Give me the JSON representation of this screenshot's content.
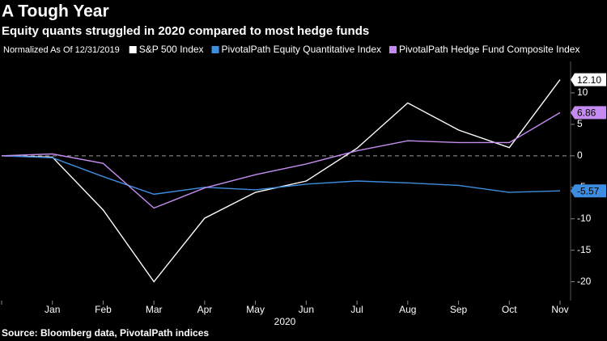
{
  "chart_data": {
    "type": "line",
    "title": "A Tough Year",
    "subtitle": "Equity quants struggled in 2020 compared to most hedge funds",
    "legend_title": "Normalized As Of 12/31/2019",
    "x_label": "2020",
    "source": "Source: Bloomberg data, PivotalPath indices",
    "categories": [
      null,
      "Jan",
      "Feb",
      "Mar",
      "Apr",
      "May",
      "Jun",
      "Jul",
      "Aug",
      "Sep",
      "Oct",
      "Nov"
    ],
    "series": [
      {
        "name": "S&P 500 Index",
        "color": "#ffffff",
        "values": [
          0,
          -0.2,
          -8.6,
          -20,
          -9.9,
          -5.8,
          -4,
          1.2,
          8.4,
          4.1,
          1.3,
          12.1
        ],
        "end_label": "12.10"
      },
      {
        "name": "PivotalPath Equity Quantitative Index",
        "color": "#3d8ee0",
        "values": [
          0,
          -0.3,
          -3.3,
          -6.1,
          -5,
          -5.4,
          -4.5,
          -4,
          -4.3,
          -4.7,
          -5.8,
          -5.57
        ]
      },
      {
        "name": "PivotalPath Hedge Fund Composite Index",
        "color": "#c48cf0",
        "values": [
          0,
          0.3,
          -1.2,
          -8.3,
          -5.1,
          -3,
          -1.3,
          0.8,
          2.4,
          2.1,
          2.1,
          6.86
        ]
      }
    ],
    "ylim": [
      -23,
      15
    ],
    "yticks": [
      -20,
      -15,
      -10,
      -5,
      0,
      5,
      10
    ],
    "zero_line": true
  }
}
